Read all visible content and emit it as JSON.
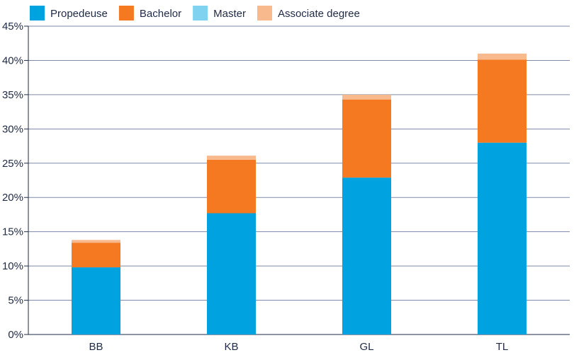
{
  "chart_data": {
    "type": "bar",
    "stacked": true,
    "categories": [
      "BB",
      "KB",
      "GL",
      "TL"
    ],
    "series": [
      {
        "name": "Propedeuse",
        "color": "#00a3e0",
        "values": [
          9.8,
          17.7,
          22.9,
          28.0
        ]
      },
      {
        "name": "Bachelor",
        "color": "#f47920",
        "values": [
          3.6,
          7.8,
          11.4,
          12.1
        ]
      },
      {
        "name": "Master",
        "color": "#7fd3f0",
        "values": [
          0.0,
          0.0,
          0.0,
          0.0
        ]
      },
      {
        "name": "Associate degree",
        "color": "#f8b98d",
        "values": [
          0.4,
          0.6,
          0.7,
          0.9
        ]
      }
    ],
    "y_ticks": [
      "0%",
      "5%",
      "10%",
      "15%",
      "20%",
      "25%",
      "30%",
      "35%",
      "40%",
      "45%"
    ],
    "y_tick_values": [
      0,
      5,
      10,
      15,
      20,
      25,
      30,
      35,
      40,
      45
    ],
    "ylim": [
      0,
      45
    ],
    "title": "",
    "xlabel": "",
    "ylabel": "",
    "grid": true,
    "legend_position": "top-left",
    "colors": {
      "grid": "#7f8aa8",
      "axis": "#1f2a44",
      "text": "#1f2a44"
    }
  }
}
